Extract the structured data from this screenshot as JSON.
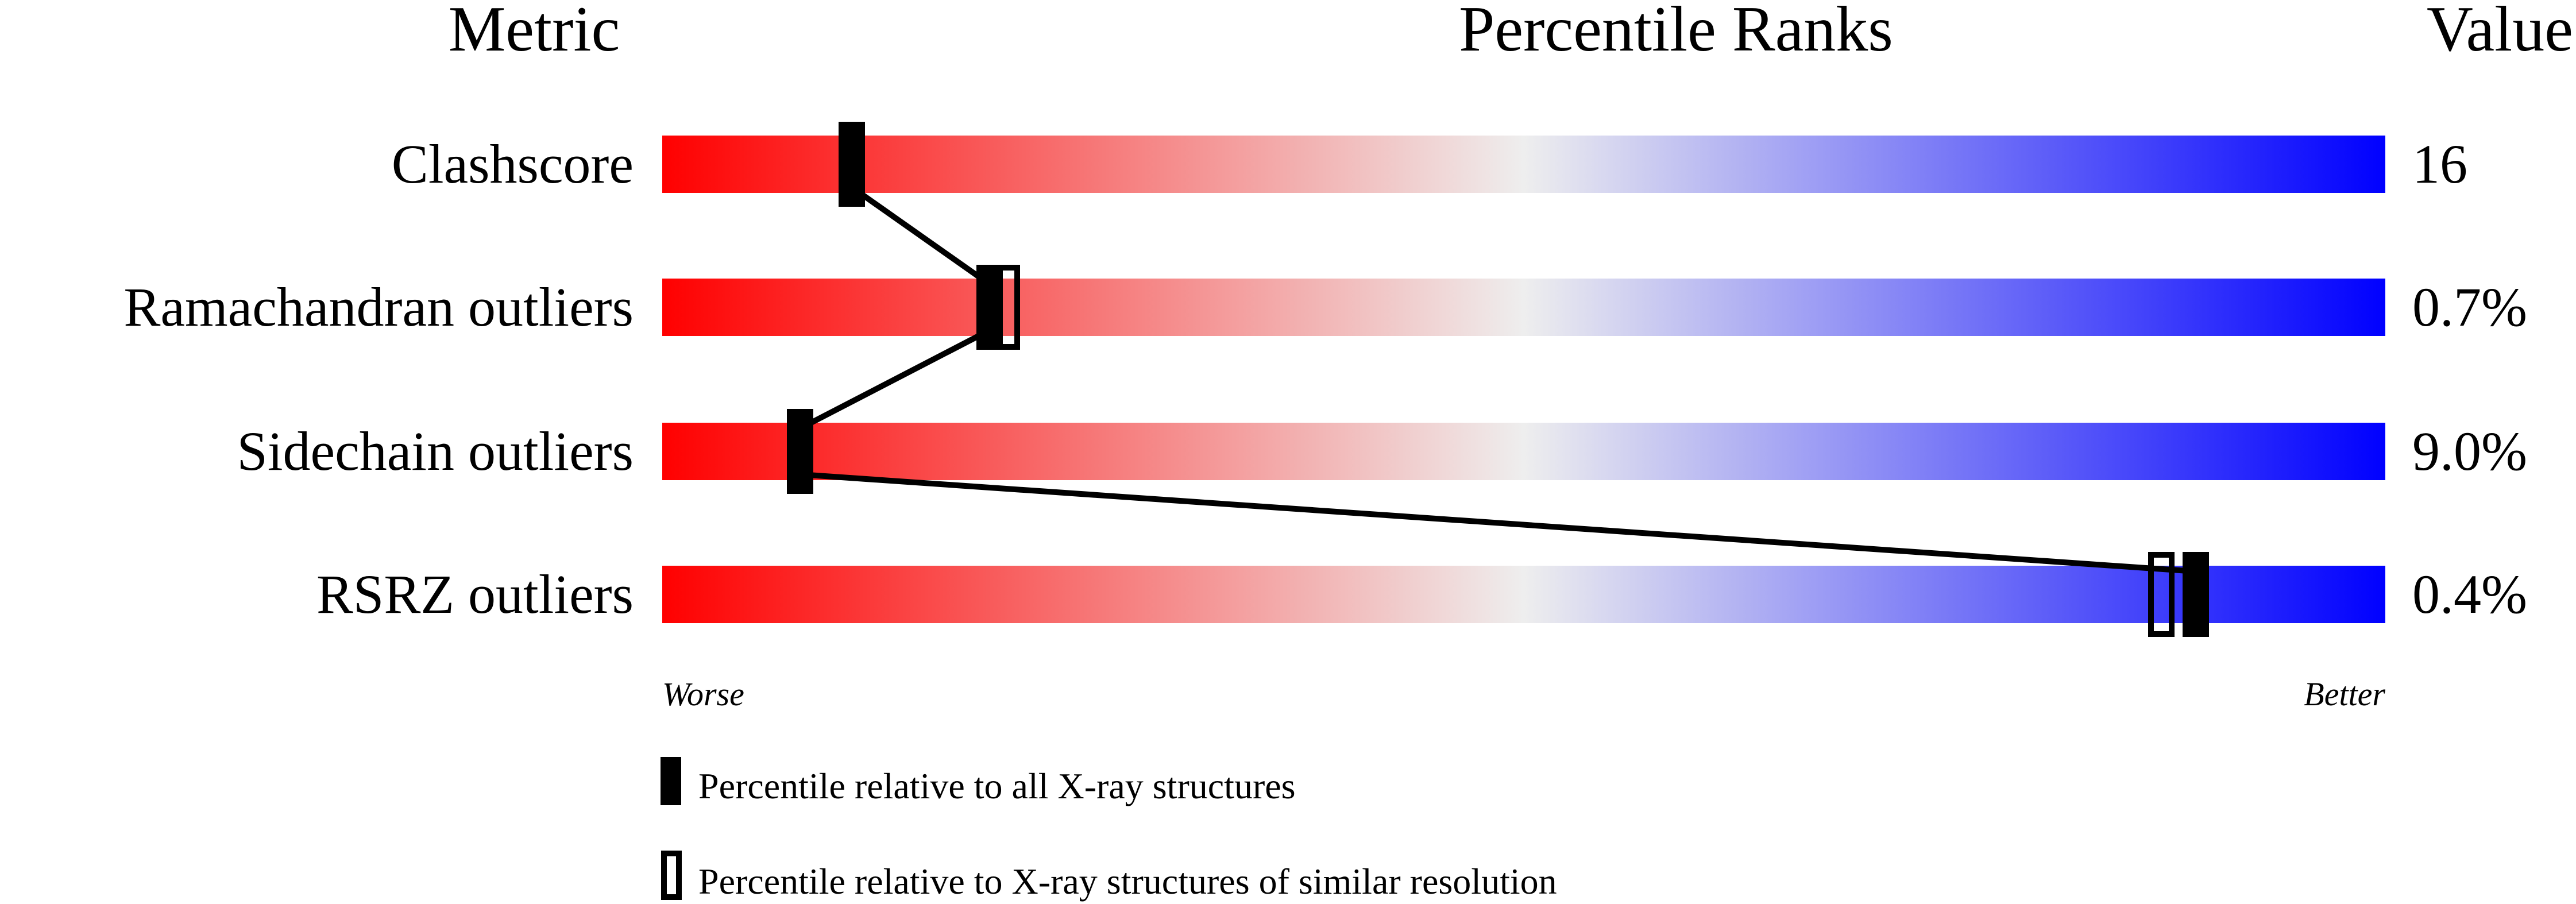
{
  "chart_data": {
    "type": "percentile-slider",
    "headers": {
      "metric": "Metric",
      "ranks": "Percentile Ranks",
      "value": "Value"
    },
    "xlim": [
      0,
      100
    ],
    "axis_labels": {
      "left": "Worse",
      "right": "Better"
    },
    "gradient_colors": {
      "worse": "#ff0000",
      "middle": "#eeeeee",
      "better": "#0000ff"
    },
    "metrics": [
      {
        "name": "Clashscore",
        "value": "16",
        "percentile_all": 11,
        "percentile_similar": null
      },
      {
        "name": "Ramachandran outliers",
        "value": "0.7%",
        "percentile_all": 19,
        "percentile_similar": 20
      },
      {
        "name": "Sidechain outliers",
        "value": "9.0%",
        "percentile_all": 8,
        "percentile_similar": null
      },
      {
        "name": "RSRZ outliers",
        "value": "0.4%",
        "percentile_all": 89,
        "percentile_similar": 87
      }
    ],
    "legend": [
      {
        "marker": "filled",
        "label": "Percentile relative to all X-ray structures"
      },
      {
        "marker": "open",
        "label": "Percentile relative to X-ray structures of similar resolution"
      }
    ]
  }
}
